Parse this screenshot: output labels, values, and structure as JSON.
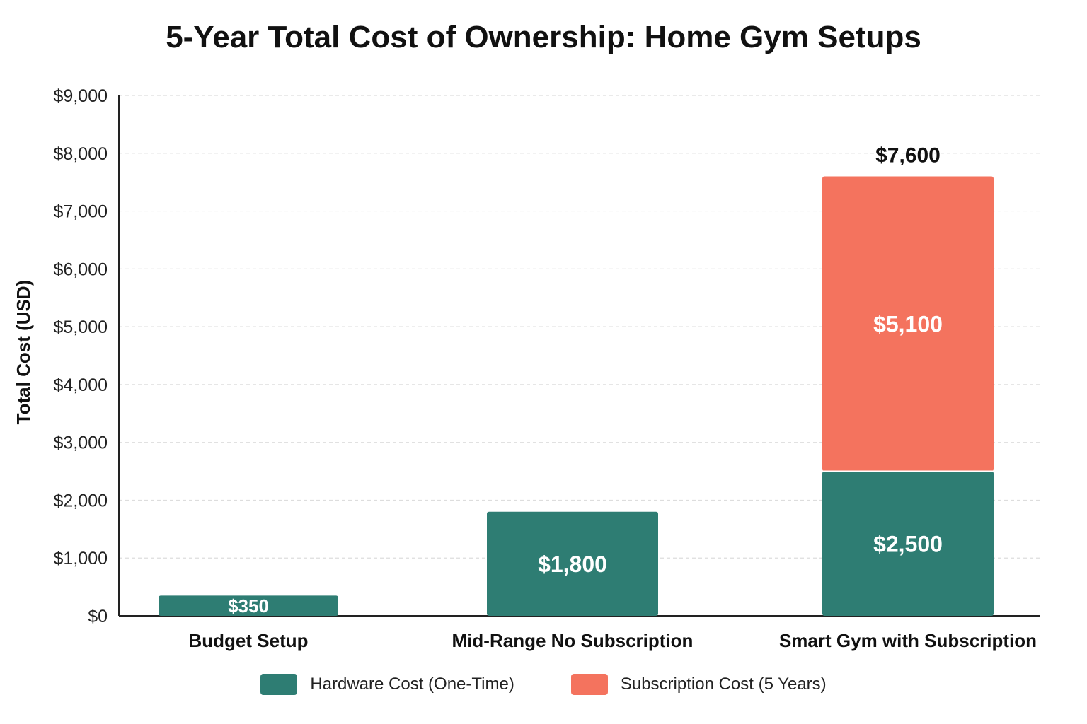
{
  "chart_data": {
    "type": "bar",
    "stacked": true,
    "title": "5-Year Total Cost of Ownership: Home Gym Setups",
    "ylabel": "Total Cost (USD)",
    "xlabel": "",
    "ylim": [
      0,
      9000
    ],
    "yticks": [
      0,
      1000,
      2000,
      3000,
      4000,
      5000,
      6000,
      7000,
      8000,
      9000
    ],
    "ytick_labels": [
      "$0",
      "$1,000",
      "$2,000",
      "$3,000",
      "$4,000",
      "$5,000",
      "$6,000",
      "$7,000",
      "$8,000",
      "$9,000"
    ],
    "categories": [
      "Budget Setup",
      "Mid-Range No Subscription",
      "Smart Gym with Subscription"
    ],
    "series": [
      {
        "name": "Hardware Cost (One-Time)",
        "color": "#2e7d73",
        "values": [
          350,
          1800,
          2500
        ],
        "labels": [
          "$350",
          "$1,800",
          "$2,500"
        ]
      },
      {
        "name": "Subscription Cost (5 Years)",
        "color": "#f4735e",
        "values": [
          0,
          0,
          5100
        ],
        "labels": [
          "",
          "",
          "$5,100"
        ]
      }
    ],
    "totals": [
      {
        "category": "Smart Gym with Subscription",
        "value": 7600,
        "label": "$7,600"
      }
    ],
    "grid": true,
    "legend_position": "bottom"
  }
}
